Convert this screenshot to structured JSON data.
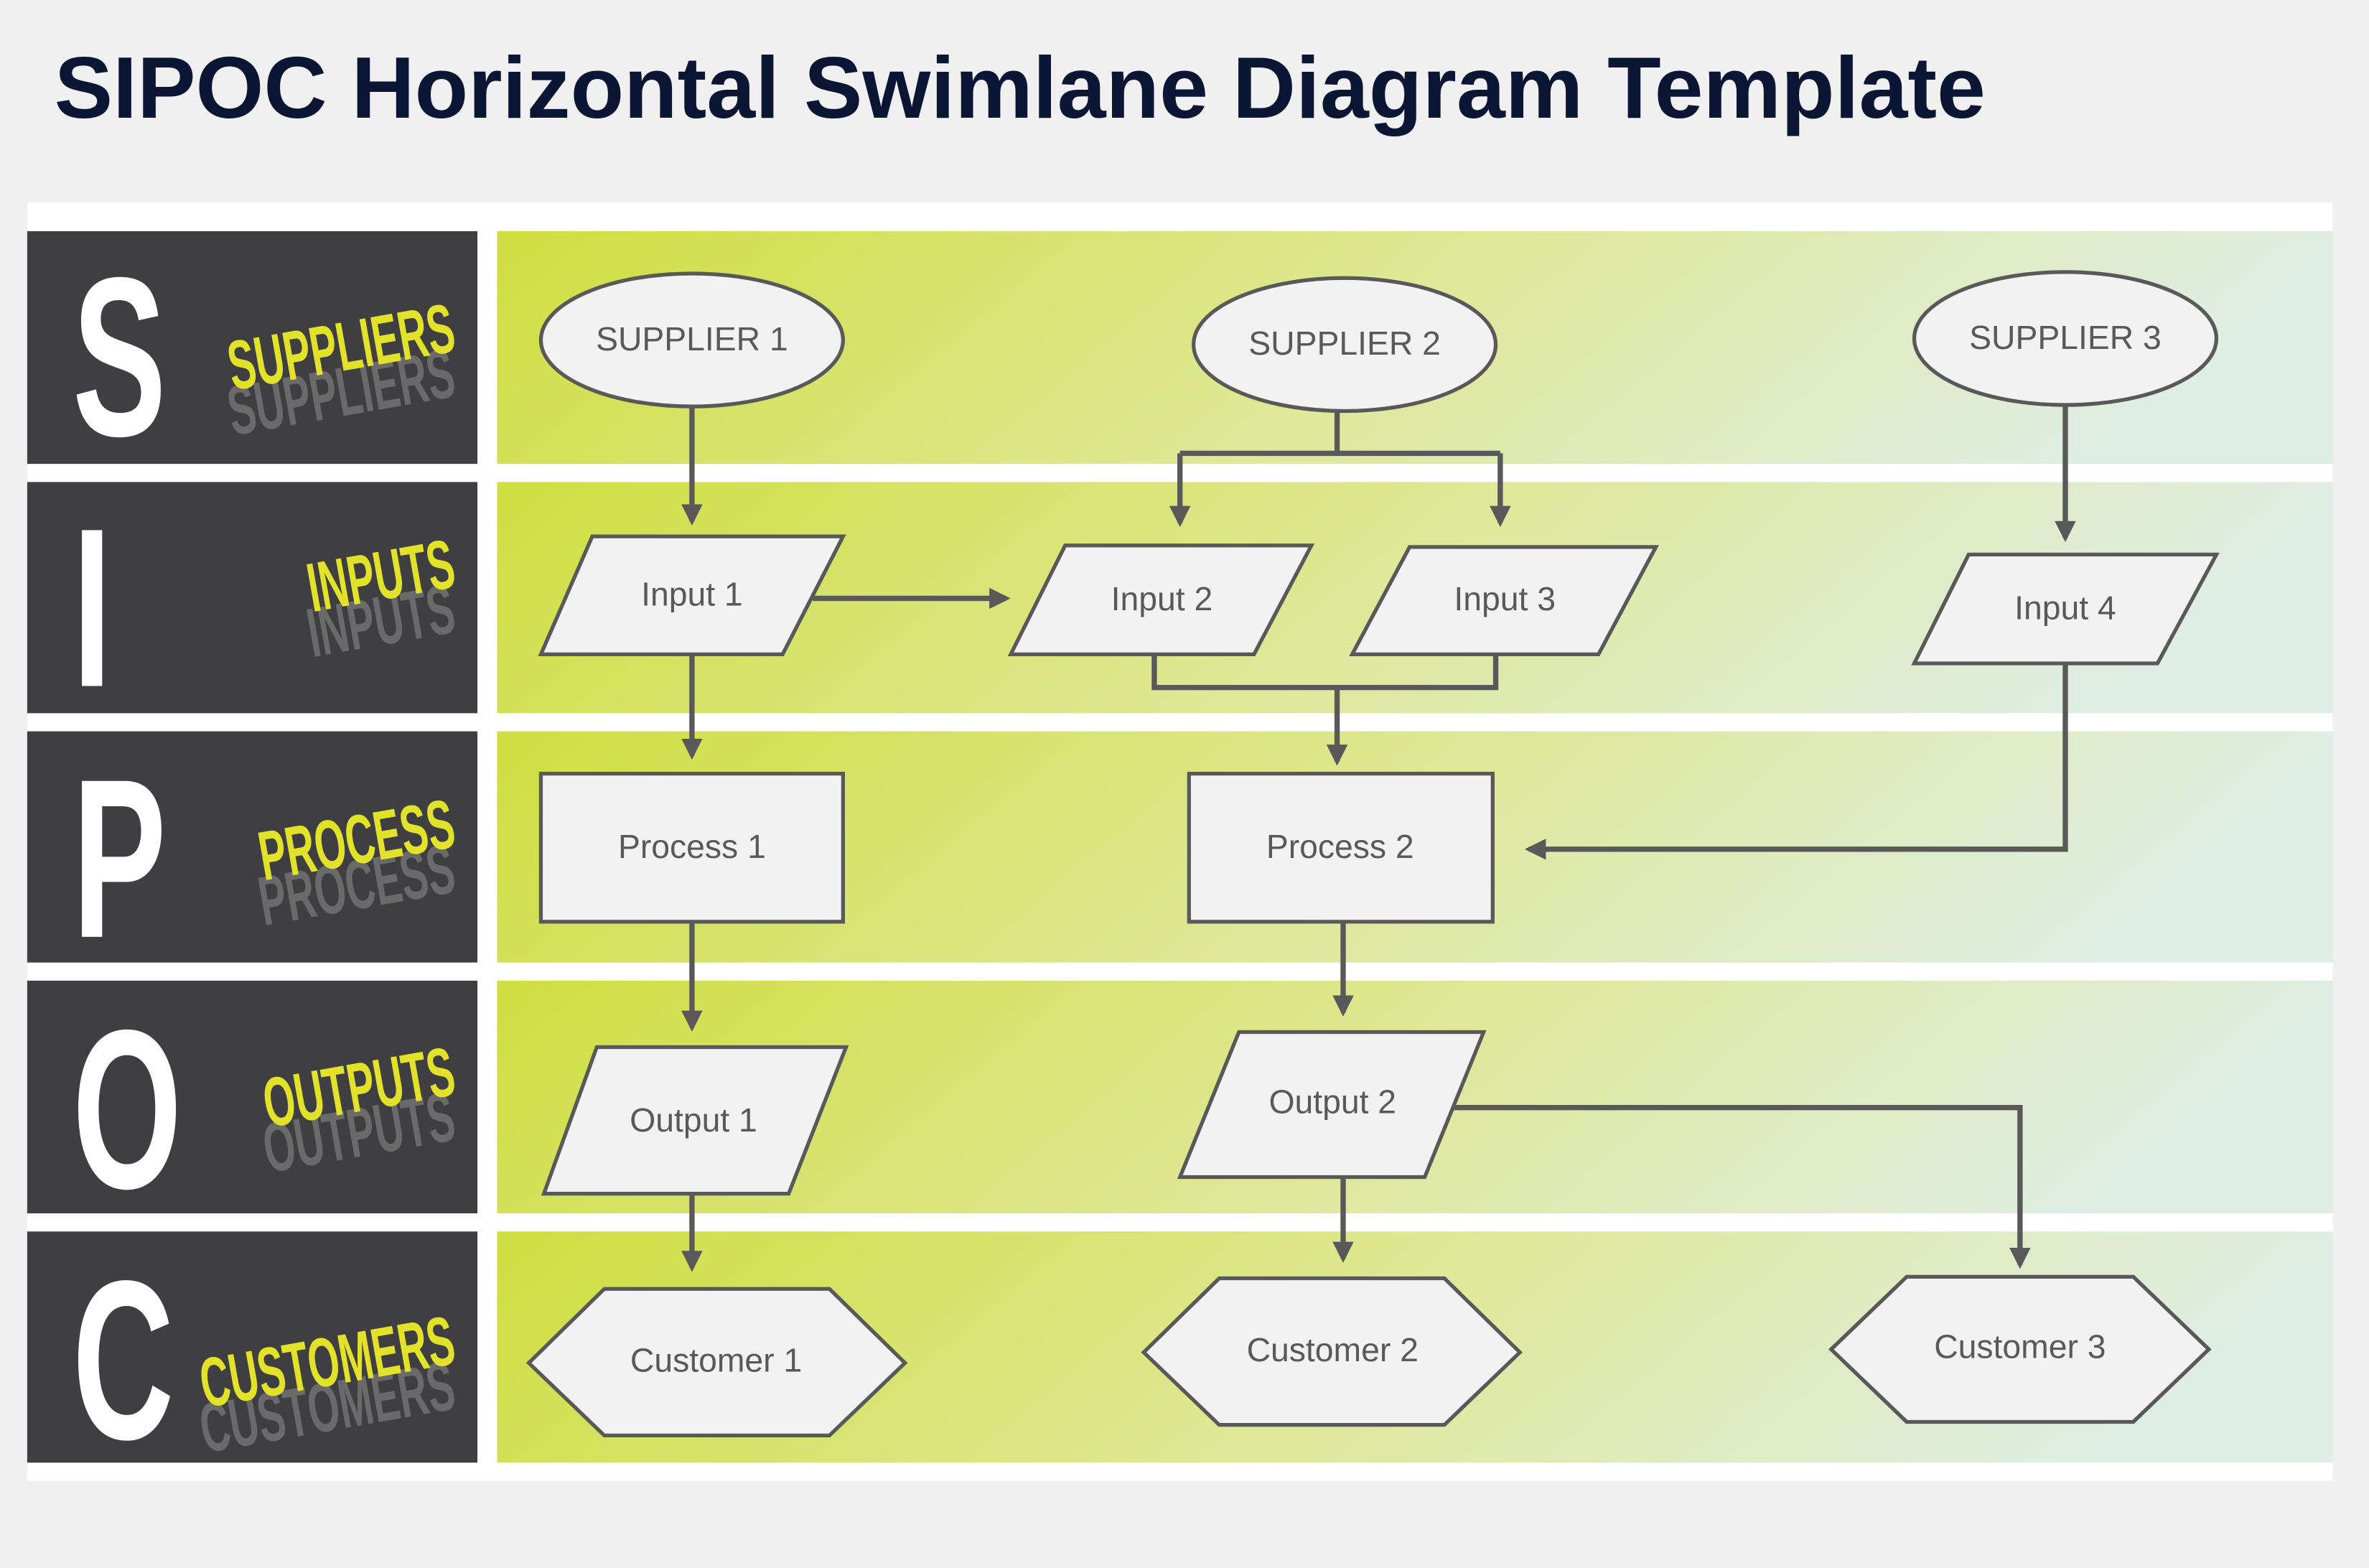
{
  "title": "SIPOC Horizontal Swimlane Diagram Template",
  "colors": {
    "title": "#0a1633",
    "lane_header": "#3f3f41",
    "label_accent": "#e2e22a",
    "lane_gradient_start": "#cfde3f",
    "lane_gradient_end": "#dfeee5",
    "node_fill": "#f2f2f2",
    "node_stroke": "#595959"
  },
  "lanes": [
    {
      "letter": "S",
      "label": "SUPPLIERS"
    },
    {
      "letter": "I",
      "label": "INPUTS"
    },
    {
      "letter": "P",
      "label": "PROCESS"
    },
    {
      "letter": "O",
      "label": "OUTPUTS"
    },
    {
      "letter": "C",
      "label": "CUSTOMERS"
    }
  ],
  "nodes": {
    "supplier1": "SUPPLIER 1",
    "supplier2": "SUPPLIER 2",
    "supplier3": "SUPPLIER 3",
    "input1": "Input 1",
    "input2": "Input 2",
    "input3": "Input 3",
    "input4": "Input 4",
    "process1": "Process 1",
    "process2": "Process 2",
    "output1": "Output 1",
    "output2": "Output 2",
    "customer1": "Customer 1",
    "customer2": "Customer 2",
    "customer3": "Customer 3"
  }
}
